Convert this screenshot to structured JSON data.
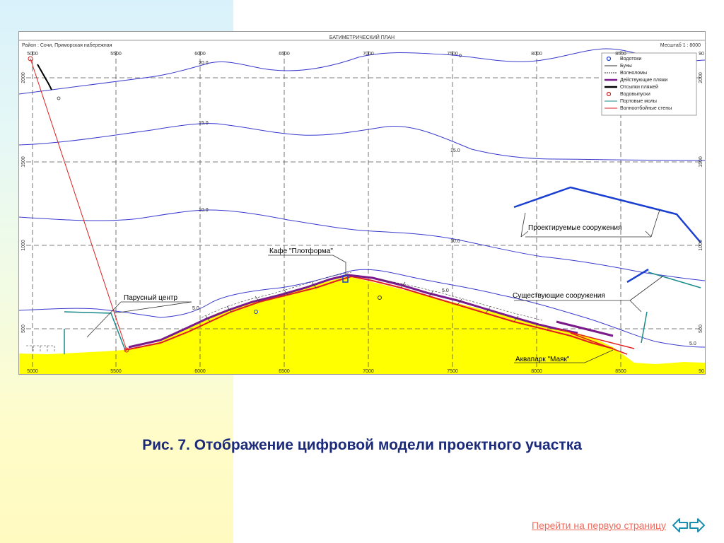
{
  "map": {
    "title": "БАТИМЕТРИЧЕСКИЙ ПЛАН",
    "district": "Район : Сочи, Приморская набережная",
    "scale": "Месштаб 1 : 8000",
    "x_ticks": [
      "5000",
      "5500",
      "6000",
      "6500",
      "7000",
      "7500",
      "8000",
      "8500",
      "90"
    ],
    "y_ticks": [
      "2000",
      "1500",
      "1000",
      "500"
    ],
    "depth_labels": {
      "d20": "20.0",
      "d15": "15.0",
      "d15b": "15.0",
      "d10": "10.0",
      "d10b": "10.0",
      "d5": "5.0",
      "d5b": "5.0",
      "d5c": "5.0",
      "d0": "0"
    },
    "legend": [
      {
        "label": "Водотоки",
        "color": "#1a3fd0"
      },
      {
        "label": "Буны",
        "color": "#333333"
      },
      {
        "label": "Волноломы",
        "color": "#333333"
      },
      {
        "label": "Действующие пляжи",
        "color": "#7a1a8a"
      },
      {
        "label": "Отсыпки пляжей",
        "color": "#000000"
      },
      {
        "label": "Водовыпуски",
        "color": "#d02020"
      },
      {
        "label": "Портовые молы",
        "color": "#1a8a8a"
      },
      {
        "label": "Волноотбойные стены",
        "color": "#e02020"
      }
    ],
    "annotations": {
      "cafe": "Кафе \"Плотформа\"",
      "sail_center": "Парусный центр",
      "projected": "Проектируемые сооружения",
      "existing": "Существующие сооружения",
      "aquapark": "Аквапарк \"Маяк\""
    },
    "colors": {
      "land": "#ffff00",
      "isobath": "#3a3acf",
      "grid": "#555555",
      "beach": "#7a1a8a",
      "seawall": "#e02020",
      "pier": "#1a8a8a",
      "projected": "#1a3fd0"
    }
  },
  "caption": "Рис. 7. Отображение цифровой модели проектного участка",
  "nav": {
    "first_page_link": "Перейти на первую страницу",
    "prev_icon": "arrow-left-icon",
    "next_icon": "arrow-right-icon"
  }
}
